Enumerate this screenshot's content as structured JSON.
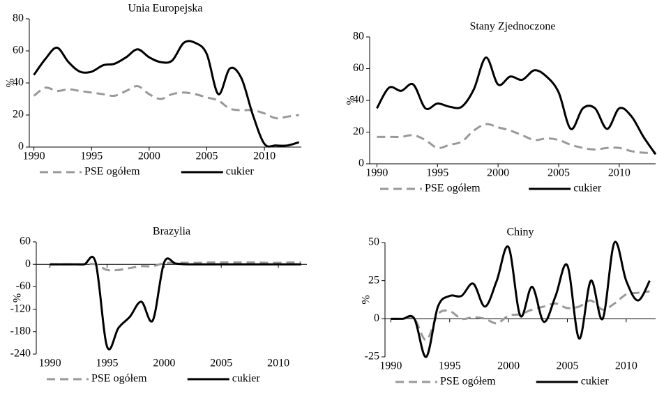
{
  "chart_data": [
    {
      "type": "line",
      "title": "Unia Europejska",
      "y_label": "%",
      "x": [
        1990,
        1991,
        1992,
        1993,
        1994,
        1995,
        1996,
        1997,
        1998,
        1999,
        2000,
        2001,
        2002,
        2003,
        2004,
        2005,
        2006,
        2007,
        2008,
        2009,
        2010,
        2011,
        2012,
        2013
      ],
      "series": [
        {
          "name": "PSE ogółem",
          "color": "#999999",
          "linestyle": "dashed",
          "values": [
            32,
            37,
            35,
            36,
            35,
            34,
            33,
            32,
            35,
            38,
            33,
            30,
            33,
            34,
            33,
            31,
            29,
            24,
            23,
            23,
            21,
            18,
            19,
            20
          ]
        },
        {
          "name": "cukier",
          "color": "#000000",
          "linestyle": "solid",
          "values": [
            45,
            55,
            62,
            53,
            47,
            47,
            51,
            52,
            56,
            61,
            56,
            53,
            54,
            65,
            65,
            58,
            33,
            49,
            43,
            20,
            2,
            1,
            1,
            3
          ]
        }
      ],
      "xlim": [
        1989.6,
        2013.2
      ],
      "xticks": [
        1990,
        1995,
        2000,
        2005,
        2010
      ],
      "ylim": [
        0,
        80
      ],
      "yticks": [
        0,
        20,
        40,
        60,
        80
      ],
      "legend": "bottom"
    },
    {
      "type": "line",
      "title": "Stany Zjednoczone",
      "y_label": "%",
      "x": [
        1990,
        1991,
        1992,
        1993,
        1994,
        1995,
        1996,
        1997,
        1998,
        1999,
        2000,
        2001,
        2002,
        2003,
        2004,
        2005,
        2006,
        2007,
        2008,
        2009,
        2010,
        2011,
        2012,
        2013
      ],
      "series": [
        {
          "name": "PSE ogółem",
          "color": "#999999",
          "linestyle": "dashed",
          "values": [
            17,
            17,
            17,
            18,
            15,
            10,
            12,
            14,
            21,
            25,
            23,
            21,
            18,
            15,
            16,
            15,
            12,
            10,
            9,
            10,
            10,
            8,
            7,
            7
          ]
        },
        {
          "name": "cukier",
          "color": "#000000",
          "linestyle": "solid",
          "values": [
            35,
            48,
            46,
            50,
            35,
            38,
            36,
            36,
            47,
            67,
            50,
            55,
            53,
            59,
            55,
            45,
            22,
            35,
            35,
            22,
            35,
            30,
            17,
            6
          ]
        }
      ],
      "xlim": [
        1989.4,
        2013
      ],
      "xticks": [
        1990,
        1995,
        2000,
        2005,
        2010
      ],
      "ylim": [
        0,
        80
      ],
      "yticks": [
        0,
        20,
        40,
        60,
        80
      ],
      "legend": "bottom"
    },
    {
      "type": "line",
      "title": "Brazylia",
      "y_label": "%",
      "x": [
        1990,
        1991,
        1992,
        1993,
        1994,
        1995,
        1996,
        1997,
        1998,
        1999,
        2000,
        2001,
        2002,
        2003,
        2004,
        2005,
        2006,
        2007,
        2008,
        2009,
        2010,
        2011,
        2012
      ],
      "series": [
        {
          "name": "PSE ogółem",
          "color": "#999999",
          "linestyle": "dashed",
          "values": [
            0,
            0,
            0,
            0,
            0,
            -15,
            -15,
            -10,
            -5,
            -5,
            3,
            4,
            4,
            4,
            5,
            5,
            5,
            5,
            5,
            4,
            4,
            5,
            5
          ]
        },
        {
          "name": "cukier",
          "color": "#000000",
          "linestyle": "solid",
          "values": [
            0,
            0,
            0,
            0,
            5,
            -220,
            -170,
            -140,
            -100,
            -150,
            5,
            2,
            0,
            0,
            0,
            0,
            0,
            0,
            0,
            0,
            0,
            0,
            0
          ]
        }
      ],
      "xlim": [
        1988.8,
        2012.5
      ],
      "xticks": [
        1990,
        1995,
        2000,
        2005,
        2010
      ],
      "ylim": [
        -240,
        60
      ],
      "yticks": [
        -240,
        -180,
        -120,
        -60,
        0,
        60
      ],
      "legend": "bottom"
    },
    {
      "type": "line",
      "title": "Chiny",
      "y_label": "%",
      "x": [
        1990,
        1991,
        1992,
        1993,
        1994,
        1995,
        1996,
        1997,
        1998,
        1999,
        2000,
        2001,
        2002,
        2003,
        2004,
        2005,
        2006,
        2007,
        2008,
        2009,
        2010,
        2011,
        2012
      ],
      "series": [
        {
          "name": "PSE ogółem",
          "color": "#999999",
          "linestyle": "dashed",
          "values": [
            0,
            0,
            0,
            -14,
            3,
            5,
            0,
            1,
            0,
            -3,
            2,
            3,
            6,
            8,
            10,
            7,
            8,
            12,
            6,
            10,
            16,
            17,
            18
          ]
        },
        {
          "name": "cukier",
          "color": "#000000",
          "linestyle": "solid",
          "values": [
            0,
            0,
            0,
            -25,
            8,
            15,
            15,
            23,
            8,
            25,
            47,
            2,
            21,
            -2,
            15,
            35,
            -13,
            25,
            0,
            50,
            25,
            12,
            25
          ]
        }
      ],
      "xlim": [
        1989.5,
        2012.5
      ],
      "xticks": [
        1990,
        1995,
        2000,
        2005,
        2010
      ],
      "ylim": [
        -25,
        50
      ],
      "yticks": [
        -25,
        0,
        25,
        50
      ],
      "legend": "bottom"
    }
  ]
}
